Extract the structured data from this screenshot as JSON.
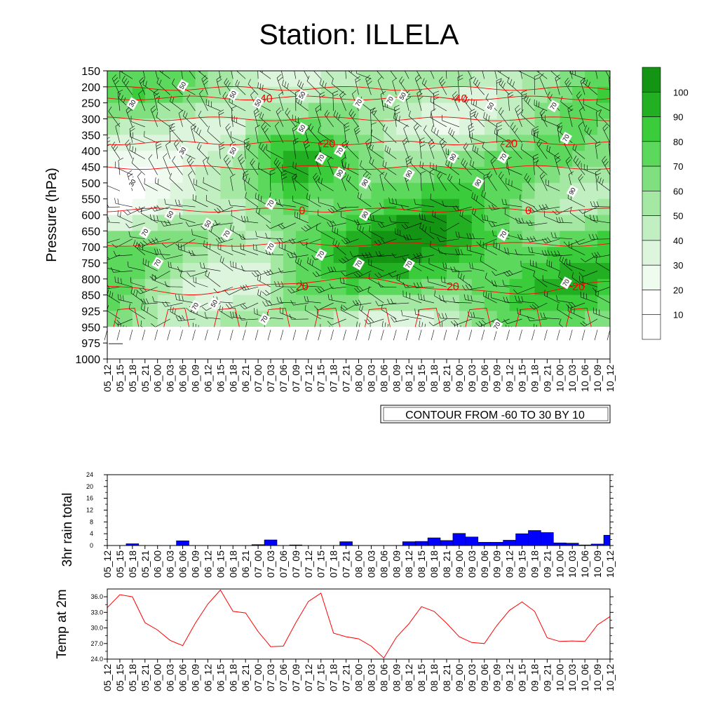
{
  "title": "Station: ILLELA",
  "time_labels": [
    "05_12",
    "05_15",
    "05_18",
    "05_21",
    "06_00",
    "06_03",
    "06_06",
    "06_09",
    "06_12",
    "06_15",
    "06_18",
    "06_21",
    "07_00",
    "07_03",
    "07_06",
    "07_09",
    "07_12",
    "07_15",
    "07_18",
    "07_21",
    "08_00",
    "08_03",
    "08_06",
    "08_09",
    "08_12",
    "08_15",
    "08_18",
    "08_21",
    "09_00",
    "09_03",
    "09_06",
    "09_09",
    "09_12",
    "09_15",
    "09_18",
    "09_21",
    "10_00",
    "10_03",
    "10_06",
    "10_09",
    "10_12"
  ],
  "colors": {
    "bar_fill": "#0000ff",
    "temp_line": "#ff0000",
    "isotherm": "#ff0000",
    "humidity_scale": [
      "#ffffff",
      "#f0fbf0",
      "#dcf5dc",
      "#c2efc2",
      "#a4e8a4",
      "#80e080",
      "#5cd95c",
      "#3acc3a",
      "#22b022",
      "#139413"
    ]
  },
  "chart_data": [
    {
      "type": "heatmap",
      "name": "vertical-cross-section",
      "ylabel": "Pressure (hPa)",
      "pressure_levels": [
        150,
        200,
        250,
        300,
        350,
        400,
        450,
        500,
        550,
        600,
        650,
        700,
        750,
        800,
        850,
        925,
        950,
        975,
        1000
      ],
      "y_inverted": true,
      "colorbar_labels": [
        10,
        20,
        30,
        40,
        50,
        60,
        70,
        80,
        90,
        100
      ],
      "contour_note": "CONTOUR FROM -60 TO 30 BY 10",
      "isotherms": [
        {
          "label": "-40",
          "pressure": 235,
          "label_positions": [
            12.5,
            28.0
          ]
        },
        {
          "label": "-20",
          "pressure": 375,
          "label_positions": [
            17.5,
            32.0
          ]
        },
        {
          "label": "0",
          "pressure": 585,
          "label_positions": [
            15.5,
            33.5
          ]
        },
        {
          "label": "20",
          "pressure": 822,
          "label_positions": [
            15.5,
            27.5,
            37.5
          ]
        }
      ],
      "humidity_labels": [
        {
          "t": 6,
          "p": 196,
          "v": "50"
        },
        {
          "t": 2,
          "p": 252,
          "v": "30"
        },
        {
          "t": 10,
          "p": 224,
          "v": "50"
        },
        {
          "t": 15.5,
          "p": 226,
          "v": "50"
        },
        {
          "t": 20,
          "p": 250,
          "v": "70"
        },
        {
          "t": 22.5,
          "p": 242,
          "v": "70"
        },
        {
          "t": 23.5,
          "p": 229,
          "v": "50"
        },
        {
          "t": 30.5,
          "p": 260,
          "v": "50"
        },
        {
          "t": 35.5,
          "p": 260,
          "v": "70"
        },
        {
          "t": 6,
          "p": 400,
          "v": "30"
        },
        {
          "t": 10,
          "p": 400,
          "v": "50"
        },
        {
          "t": 12,
          "p": 250,
          "v": "50"
        },
        {
          "t": 15.5,
          "p": 330,
          "v": "50"
        },
        {
          "t": 18.5,
          "p": 401,
          "v": "70"
        },
        {
          "t": 17,
          "p": 423,
          "v": "70"
        },
        {
          "t": 18.5,
          "p": 470,
          "v": "90"
        },
        {
          "t": 20.5,
          "p": 500,
          "v": "90"
        },
        {
          "t": 24,
          "p": 472,
          "v": "90"
        },
        {
          "t": 27.5,
          "p": 420,
          "v": "90"
        },
        {
          "t": 29.5,
          "p": 500,
          "v": "90"
        },
        {
          "t": 31.5,
          "p": 420,
          "v": "70"
        },
        {
          "t": 36.5,
          "p": 360,
          "v": "70"
        },
        {
          "t": 37,
          "p": 526,
          "v": "90"
        },
        {
          "t": 2,
          "p": 500,
          "v": "30"
        },
        {
          "t": 5,
          "p": 599,
          "v": "50"
        },
        {
          "t": 8,
          "p": 628,
          "v": "50"
        },
        {
          "t": 13,
          "p": 565,
          "v": "70"
        },
        {
          "t": 20.5,
          "p": 600,
          "v": "90"
        },
        {
          "t": 3,
          "p": 655,
          "v": "70"
        },
        {
          "t": 9.5,
          "p": 660,
          "v": "70"
        },
        {
          "t": 13,
          "p": 700,
          "v": "70"
        },
        {
          "t": 17,
          "p": 724,
          "v": "70"
        },
        {
          "t": 20,
          "p": 753,
          "v": "70"
        },
        {
          "t": 24,
          "p": 755,
          "v": "70"
        },
        {
          "t": 31.5,
          "p": 662,
          "v": "70"
        },
        {
          "t": 4,
          "p": 750,
          "v": "70"
        },
        {
          "t": 36.5,
          "p": 812,
          "v": "70"
        },
        {
          "t": 8.5,
          "p": 890,
          "v": "50"
        },
        {
          "t": 7,
          "p": 903,
          "v": "70"
        },
        {
          "t": 12.5,
          "p": 938,
          "v": "70"
        },
        {
          "t": 31,
          "p": 948,
          "v": "70"
        }
      ]
    },
    {
      "type": "bar",
      "name": "rain",
      "ylabel": "3hr rain total",
      "ylim": [
        0,
        24
      ],
      "yticks": [
        0,
        4,
        8,
        12,
        16,
        20,
        24
      ],
      "values": [
        0,
        0,
        0.6,
        0,
        0,
        0,
        1.6,
        0,
        0,
        0,
        0,
        0,
        0.3,
        1.9,
        0,
        0.2,
        0,
        0,
        0,
        1.3,
        0,
        0,
        0,
        0,
        1.3,
        1.4,
        2.6,
        1.7,
        4.1,
        2.9,
        1.1,
        1.1,
        1.8,
        4.0,
        5.1,
        4.4,
        0.9,
        0.8,
        0.2,
        0.5,
        3.5
      ]
    },
    {
      "type": "line",
      "name": "temperature",
      "ylabel": "Temp at 2m",
      "ylim": [
        24.0,
        37.5
      ],
      "yticks": [
        "24.0",
        "27.0",
        "30.0",
        "33.0",
        "36.0"
      ],
      "values": [
        33.9,
        36.4,
        36.0,
        31.0,
        29.6,
        27.6,
        26.6,
        30.9,
        34.6,
        37.3,
        33.2,
        32.9,
        29.3,
        26.4,
        26.5,
        31.0,
        35.1,
        36.7,
        29.0,
        28.3,
        27.9,
        26.5,
        24.2,
        28.2,
        30.8,
        34.1,
        33.2,
        30.9,
        28.3,
        27.2,
        27.0,
        30.5,
        33.4,
        35.0,
        33.2,
        28.1,
        27.4,
        27.5,
        27.4,
        30.6,
        32.2
      ]
    }
  ]
}
